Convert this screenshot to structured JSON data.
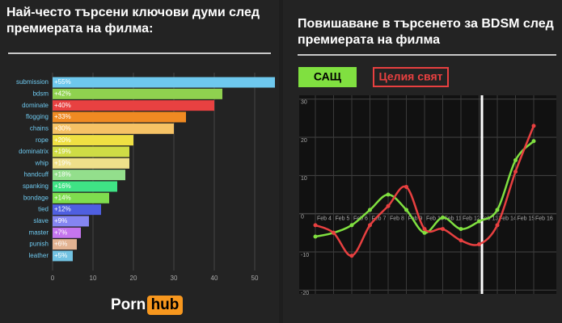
{
  "chart_data": [
    {
      "type": "bar",
      "orientation": "horizontal",
      "title": "Най-често търсени ключови думи след премиерата на филма:",
      "categories": [
        "submission",
        "bdsm",
        "dominate",
        "flogging",
        "chains",
        "rope",
        "dominatrix",
        "whip",
        "handcuff",
        "spanking",
        "bondage",
        "tied",
        "slave",
        "master",
        "punish",
        "leather"
      ],
      "values": [
        55,
        42,
        40,
        33,
        30,
        20,
        19,
        19,
        18,
        16,
        14,
        12,
        9,
        7,
        6,
        5
      ],
      "value_labels": [
        "+55%",
        "+42%",
        "+40%",
        "+33%",
        "+30%",
        "+20%",
        "+19%",
        "+19%",
        "+18%",
        "+16%",
        "+14%",
        "+12%",
        "+9%",
        "+7%",
        "+6%",
        "+5%"
      ],
      "colors": [
        "#6ec8ee",
        "#8fd14f",
        "#e84141",
        "#f08a22",
        "#f6c265",
        "#efe043",
        "#cfdc45",
        "#efe08a",
        "#93df8c",
        "#3fe385",
        "#7fdd4e",
        "#4f5fe0",
        "#8585f2",
        "#c575ef",
        "#e2b392",
        "#71c2e2"
      ],
      "xlim": [
        0,
        56
      ],
      "xticks": [
        0,
        10,
        20,
        30,
        40,
        50
      ],
      "grid": true
    },
    {
      "type": "line",
      "title": "Повишаване в търсенето за BDSM след премиерата на филма",
      "categories": [
        "Feb 4",
        "Feb 5",
        "Feb 6",
        "Feb 7",
        "Feb 8",
        "Feb 9",
        "Feb 10",
        "Feb 11",
        "Feb 12",
        "Feb 13",
        "Feb 14",
        "Feb 15",
        "Feb 16"
      ],
      "series": [
        {
          "name": "САЩ",
          "color": "#80e040",
          "values": [
            -6,
            -5,
            -3,
            1,
            5,
            1,
            -5,
            -1,
            -4,
            -2,
            1,
            14,
            19
          ]
        },
        {
          "name": "Целия свят",
          "color": "#e84040",
          "values": [
            -3,
            -5,
            -11,
            -3,
            2,
            7,
            -4,
            -4,
            -7,
            -8,
            -3,
            11,
            23
          ]
        }
      ],
      "ylim": [
        -21,
        31
      ],
      "yticks": [
        30,
        20,
        10,
        0,
        -10,
        -20
      ],
      "grid": true
    }
  ],
  "logo": {
    "left": "Porn",
    "right": "hub"
  }
}
